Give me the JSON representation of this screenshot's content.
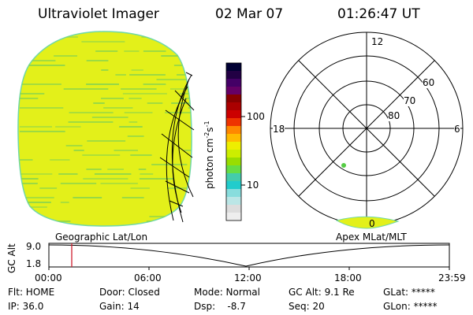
{
  "header": {
    "instrument": "Ultraviolet Imager",
    "date": "02 Mar 07",
    "time": "01:26:47 UT"
  },
  "colorbar": {
    "unit_label": "photon cm",
    "unit_exp1": "-2",
    "unit_s": "s",
    "unit_exp2": "-1",
    "tick_100": "100",
    "tick_10": "10",
    "colors": [
      "#000033",
      "#220044",
      "#440066",
      "#660066",
      "#880000",
      "#aa0000",
      "#cc0000",
      "#ee3300",
      "#ff8800",
      "#ffbb00",
      "#eeee00",
      "#ccee00",
      "#99dd00",
      "#66dd44",
      "#44ccaa",
      "#22cccc",
      "#88dddd",
      "#bbe6e6",
      "#dddddd",
      "#eeeeee"
    ]
  },
  "polar_plot": {
    "mlt_12": "12",
    "mlt_18": "18",
    "mlt_6": "6",
    "mlt_0": "0",
    "lat_60": "60",
    "lat_70": "70",
    "lat_80": "80"
  },
  "timeline": {
    "left_label": "Geographic Lat/Lon",
    "right_label": "Apex MLat/MLT",
    "axis_title": "GC Alt",
    "y_top": "9.0",
    "y_bottom": "1.8",
    "x_ticks": [
      "00:00",
      "06:00",
      "12:00",
      "18:00",
      "23:59"
    ]
  },
  "status": {
    "flt": "Flt: HOME",
    "ip": "IP: 36.0",
    "door": "Door: Closed",
    "gain": "Gain: 14",
    "mode": "Mode: Normal",
    "dsp": "Dsp:    -8.7",
    "gc_alt": "GC Alt: 9.1 Re",
    "seq": "Seq: 20",
    "glat": "GLat: *****",
    "glon": "GLon: *****"
  },
  "colors": {
    "disk_fill": "#e3f01a",
    "disk_edge": "#6fd8a8",
    "stripe": "#8fd64a",
    "marker": "#d02030",
    "dot": "#55cc44"
  }
}
